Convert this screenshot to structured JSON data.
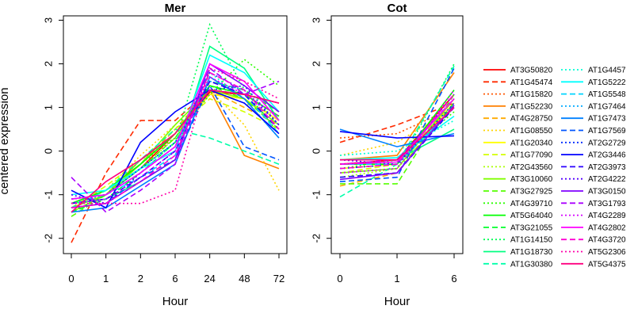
{
  "chart_data": [
    {
      "type": "line",
      "title": "Mer",
      "xlabel": "Hour",
      "ylabel": "centered expression",
      "categories": [
        "0",
        "1",
        "2",
        "6",
        "24",
        "48",
        "72"
      ],
      "yticks": [
        "-2",
        "-1",
        "0",
        "1",
        "2",
        "3"
      ],
      "ylim": [
        -2.35,
        3.1
      ],
      "grid": false,
      "series": [
        {
          "name": "AT3G50820",
          "values": [
            -1.2,
            -0.9,
            -0.4,
            0.4,
            1.35,
            1.3,
            1.1
          ]
        },
        {
          "name": "AT1G45474",
          "values": [
            -2.1,
            -0.5,
            0.7,
            0.7,
            1.4,
            1.3,
            0.8
          ]
        },
        {
          "name": "AT1G15820",
          "values": [
            -1.4,
            -1.0,
            -0.3,
            0.3,
            1.3,
            1.2,
            0.7
          ]
        },
        {
          "name": "AT1G52230",
          "values": [
            -1.3,
            -1.0,
            -0.2,
            0.4,
            1.4,
            -0.1,
            -0.4
          ]
        },
        {
          "name": "AT4G28750",
          "values": [
            -1.3,
            -1.0,
            -0.3,
            0.5,
            1.4,
            1.0,
            0.6
          ]
        },
        {
          "name": "AT1G08550",
          "values": [
            -1.3,
            -0.9,
            -0.1,
            0.6,
            1.4,
            0.6,
            -0.9
          ]
        },
        {
          "name": "AT1G20340",
          "values": [
            -1.2,
            -0.9,
            -0.3,
            0.4,
            1.3,
            1.2,
            0.7
          ]
        },
        {
          "name": "AT1G77090",
          "values": [
            -1.3,
            -0.8,
            -0.2,
            0.5,
            1.2,
            0.9,
            0.5
          ]
        },
        {
          "name": "AT2G43560",
          "values": [
            -1.3,
            -1.0,
            -0.4,
            0.3,
            1.4,
            1.1,
            0.8
          ]
        },
        {
          "name": "AT3G10060",
          "values": [
            -1.4,
            -1.0,
            -0.3,
            0.6,
            1.4,
            1.2,
            0.6
          ]
        },
        {
          "name": "AT3G27925",
          "values": [
            -1.5,
            -1.0,
            -0.4,
            0.3,
            1.5,
            1.2,
            0.5
          ]
        },
        {
          "name": "AT4G39710",
          "values": [
            -1.4,
            -1.0,
            -0.2,
            0.3,
            1.3,
            2.1,
            1.5
          ]
        },
        {
          "name": "AT5G64040",
          "values": [
            -1.2,
            -0.9,
            -0.3,
            0.4,
            1.5,
            1.3,
            0.8
          ]
        },
        {
          "name": "AT3G21055",
          "values": [
            -1.4,
            -1.1,
            -0.5,
            0.2,
            1.6,
            1.4,
            0.9
          ]
        },
        {
          "name": "AT1G14150",
          "values": [
            -1.3,
            -1.0,
            -0.4,
            0.2,
            2.9,
            1.4,
            0.4
          ]
        },
        {
          "name": "AT1G18730",
          "values": [
            -1.2,
            -1.1,
            -0.7,
            -0.2,
            2.4,
            1.9,
            0.7
          ]
        },
        {
          "name": "AT1G30380",
          "values": [
            -1.3,
            -0.9,
            -0.2,
            0.5,
            0.3,
            0.0,
            -0.3
          ]
        },
        {
          "name": "AT1G4457",
          "values": [
            -1.1,
            -1.0,
            -0.5,
            0.2,
            1.8,
            1.2,
            0.3
          ]
        },
        {
          "name": "AT1G5222",
          "values": [
            -1.0,
            -0.9,
            -0.4,
            0.0,
            2.2,
            1.8,
            0.9
          ]
        },
        {
          "name": "AT1G5548",
          "values": [
            -1.1,
            -1.0,
            -0.6,
            -0.1,
            1.9,
            1.3,
            0.4
          ]
        },
        {
          "name": "AT1G7464",
          "values": [
            -1.2,
            -1.0,
            -0.5,
            0.1,
            1.6,
            1.4,
            0.6
          ]
        },
        {
          "name": "AT1G7473",
          "values": [
            -1.4,
            -1.3,
            -0.8,
            -0.3,
            1.7,
            1.2,
            0.3
          ]
        },
        {
          "name": "AT1G7569",
          "values": [
            -1.3,
            -1.2,
            -0.6,
            -0.2,
            1.5,
            0.1,
            -0.2
          ]
        },
        {
          "name": "AT2G2729",
          "values": [
            -1.1,
            -1.0,
            -0.4,
            0.2,
            1.4,
            1.5,
            0.6
          ]
        },
        {
          "name": "AT2G3446",
          "values": [
            -0.9,
            -1.3,
            0.2,
            0.9,
            1.4,
            1.1,
            0.4
          ]
        },
        {
          "name": "AT2G3973",
          "values": [
            -1.2,
            -1.1,
            -0.6,
            0.0,
            1.6,
            1.3,
            0.5
          ]
        },
        {
          "name": "AT2G4222",
          "values": [
            -1.0,
            -1.2,
            -0.5,
            0.1,
            1.8,
            1.4,
            0.6
          ]
        },
        {
          "name": "AT3G0150",
          "values": [
            -1.3,
            -1.2,
            -0.7,
            -0.2,
            2.0,
            1.5,
            0.9
          ]
        },
        {
          "name": "AT3G1793",
          "values": [
            -0.6,
            -1.4,
            -0.9,
            -0.3,
            1.9,
            1.3,
            1.6
          ]
        },
        {
          "name": "AT4G2289",
          "values": [
            -1.2,
            -1.1,
            -0.6,
            0.0,
            1.7,
            1.3,
            0.8
          ]
        },
        {
          "name": "AT4G2802",
          "values": [
            -1.1,
            -1.0,
            -0.5,
            0.1,
            2.0,
            1.6,
            0.7
          ]
        },
        {
          "name": "AT4G3720",
          "values": [
            -1.3,
            -1.2,
            -0.7,
            -0.1,
            1.8,
            1.4,
            0.5
          ]
        },
        {
          "name": "AT5G2306",
          "values": [
            -1.2,
            -1.2,
            -1.2,
            -0.9,
            1.9,
            1.6,
            1.2
          ]
        },
        {
          "name": "AT5G4375",
          "values": [
            -1.4,
            -0.7,
            -0.2,
            0.4,
            1.4,
            1.3,
            1.1
          ]
        }
      ]
    },
    {
      "type": "line",
      "title": "Cot",
      "xlabel": "Hour",
      "ylabel": "",
      "categories": [
        "0",
        "1",
        "6"
      ],
      "yticks": [
        "-2",
        "-1",
        "0",
        "1",
        "2",
        "3"
      ],
      "ylim": [
        -2.35,
        3.1
      ],
      "grid": false,
      "series": [
        {
          "name": "AT3G50820",
          "values": [
            -0.3,
            -0.2,
            1.3
          ]
        },
        {
          "name": "AT1G45474",
          "values": [
            0.2,
            0.6,
            1.1
          ]
        },
        {
          "name": "AT1G15820",
          "values": [
            0.3,
            0.4,
            1.0
          ]
        },
        {
          "name": "AT1G52230",
          "values": [
            -0.2,
            -0.1,
            1.8
          ]
        },
        {
          "name": "AT4G28750",
          "values": [
            -0.8,
            -0.5,
            1.2
          ]
        },
        {
          "name": "AT1G08550",
          "values": [
            -0.1,
            0.2,
            1.0
          ]
        },
        {
          "name": "AT1G20340",
          "values": [
            -0.4,
            -0.3,
            1.1
          ]
        },
        {
          "name": "AT1G77090",
          "values": [
            -0.5,
            -0.3,
            1.2
          ]
        },
        {
          "name": "AT2G43560",
          "values": [
            -0.6,
            -0.4,
            1.0
          ]
        },
        {
          "name": "AT3G10060",
          "values": [
            -0.5,
            -0.4,
            1.2
          ]
        },
        {
          "name": "AT3G27925",
          "values": [
            -0.75,
            -0.75,
            1.3
          ]
        },
        {
          "name": "AT4G39710",
          "values": [
            -0.4,
            -0.2,
            0.9
          ]
        },
        {
          "name": "AT5G64040",
          "values": [
            -0.3,
            -0.3,
            1.4
          ]
        },
        {
          "name": "AT3G21055",
          "values": [
            -0.6,
            -0.5,
            1.1
          ]
        },
        {
          "name": "AT1G14150",
          "values": [
            -0.5,
            -0.4,
            2.0
          ]
        },
        {
          "name": "AT1G18730",
          "values": [
            -0.2,
            -0.2,
            0.5
          ]
        },
        {
          "name": "AT1G30380",
          "values": [
            -1.05,
            -0.3,
            1.95
          ]
        },
        {
          "name": "AT1G4457",
          "values": [
            -0.1,
            0.0,
            0.7
          ]
        },
        {
          "name": "AT1G5222",
          "values": [
            -0.2,
            -0.15,
            0.8
          ]
        },
        {
          "name": "AT1G5548",
          "values": [
            -0.3,
            -0.3,
            1.0
          ]
        },
        {
          "name": "AT1G7464",
          "values": [
            -0.4,
            -0.3,
            1.0
          ]
        },
        {
          "name": "AT1G7473",
          "values": [
            0.5,
            0.1,
            0.4
          ]
        },
        {
          "name": "AT1G7569",
          "values": [
            -0.7,
            -0.6,
            1.9
          ]
        },
        {
          "name": "AT2G2729",
          "values": [
            -0.4,
            -0.3,
            1.1
          ]
        },
        {
          "name": "AT2G3446",
          "values": [
            0.45,
            0.3,
            0.35
          ]
        },
        {
          "name": "AT2G3973",
          "values": [
            -0.6,
            -0.5,
            1.0
          ]
        },
        {
          "name": "AT2G4222",
          "values": [
            -0.2,
            -0.3,
            1.3
          ]
        },
        {
          "name": "AT3G0150",
          "values": [
            -0.65,
            -0.5,
            1.05
          ]
        },
        {
          "name": "AT3G1793",
          "values": [
            -0.3,
            -0.2,
            1.2
          ]
        },
        {
          "name": "AT4G2289",
          "values": [
            -0.5,
            -0.4,
            1.4
          ]
        },
        {
          "name": "AT4G2802",
          "values": [
            -0.3,
            -0.25,
            1.2
          ]
        },
        {
          "name": "AT4G3720",
          "values": [
            -0.4,
            -0.3,
            1.3
          ]
        },
        {
          "name": "AT5G2306",
          "values": [
            -0.3,
            -0.2,
            1.0
          ]
        },
        {
          "name": "AT5G4375",
          "values": [
            -0.2,
            -0.2,
            1.0
          ]
        }
      ]
    }
  ],
  "legend": {
    "placement": "right",
    "styles": [
      {
        "color": "#ff0000",
        "dash": "solid"
      },
      {
        "color": "#ff2a00",
        "dash": "dashed"
      },
      {
        "color": "#ff5500",
        "dash": "dotted"
      },
      {
        "color": "#ff8000",
        "dash": "solid"
      },
      {
        "color": "#ffaa00",
        "dash": "dashed"
      },
      {
        "color": "#ffd500",
        "dash": "dotted"
      },
      {
        "color": "#ffff00",
        "dash": "solid"
      },
      {
        "color": "#d4ff00",
        "dash": "dashed"
      },
      {
        "color": "#aaff00",
        "dash": "dotted"
      },
      {
        "color": "#80ff00",
        "dash": "solid"
      },
      {
        "color": "#55ff00",
        "dash": "dashed"
      },
      {
        "color": "#2bff00",
        "dash": "dotted"
      },
      {
        "color": "#00ff00",
        "dash": "solid"
      },
      {
        "color": "#00ff2a",
        "dash": "dashed"
      },
      {
        "color": "#00ff55",
        "dash": "dotted"
      },
      {
        "color": "#00ff80",
        "dash": "solid"
      },
      {
        "color": "#00ffaa",
        "dash": "dashed"
      },
      {
        "color": "#00ffd5",
        "dash": "dotted"
      },
      {
        "color": "#00ffff",
        "dash": "solid"
      },
      {
        "color": "#00d4ff",
        "dash": "dashed"
      },
      {
        "color": "#00aaff",
        "dash": "dotted"
      },
      {
        "color": "#0080ff",
        "dash": "solid"
      },
      {
        "color": "#0055ff",
        "dash": "dashed"
      },
      {
        "color": "#002bff",
        "dash": "dotted"
      },
      {
        "color": "#0000ff",
        "dash": "solid"
      },
      {
        "color": "#2a00ff",
        "dash": "dashed"
      },
      {
        "color": "#5500ff",
        "dash": "dotted"
      },
      {
        "color": "#8000ff",
        "dash": "solid"
      },
      {
        "color": "#aa00ff",
        "dash": "dashed"
      },
      {
        "color": "#d500ff",
        "dash": "dotted"
      },
      {
        "color": "#ff00ff",
        "dash": "solid"
      },
      {
        "color": "#ff00d4",
        "dash": "dashed"
      },
      {
        "color": "#ff00aa",
        "dash": "dotted"
      },
      {
        "color": "#ff0080",
        "dash": "solid"
      }
    ]
  }
}
